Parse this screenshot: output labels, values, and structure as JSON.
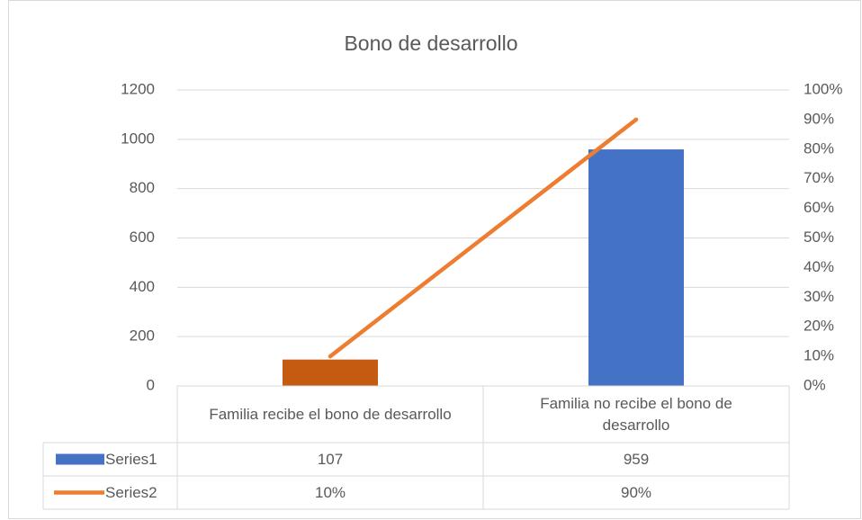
{
  "chart_data": {
    "type": "bar",
    "title": "Bono de desarrollo",
    "categories": [
      "Familia recibe el bono de desarrollo",
      "Familia no recibe el bono de desarrollo"
    ],
    "series": [
      {
        "name": "Series1",
        "color": "#4472c4",
        "point_colors": [
          "#c55a11",
          "#4472c4"
        ],
        "values": [
          107,
          959
        ]
      },
      {
        "name": "Series2",
        "color": "#ed7d31",
        "type": "line",
        "axis": "y2",
        "values": [
          10,
          90
        ],
        "value_labels": [
          "10%",
          "90%"
        ]
      }
    ],
    "ylim": [
      0,
      1200
    ],
    "yticks": [
      0,
      200,
      400,
      600,
      800,
      1000,
      1200
    ],
    "y2lim": [
      0,
      100
    ],
    "y2ticks": [
      {
        "value": 0,
        "label": "0%"
      },
      {
        "value": 10,
        "label": "10%"
      },
      {
        "value": 20,
        "label": "20%"
      },
      {
        "value": 30,
        "label": "30%"
      },
      {
        "value": 40,
        "label": "40%"
      },
      {
        "value": 50,
        "label": "50%"
      },
      {
        "value": 60,
        "label": "60%"
      },
      {
        "value": 70,
        "label": "70%"
      },
      {
        "value": 80,
        "label": "80%"
      },
      {
        "value": 90,
        "label": "90%"
      },
      {
        "value": 100,
        "label": "100%"
      }
    ],
    "grid": true,
    "data_table": true
  }
}
